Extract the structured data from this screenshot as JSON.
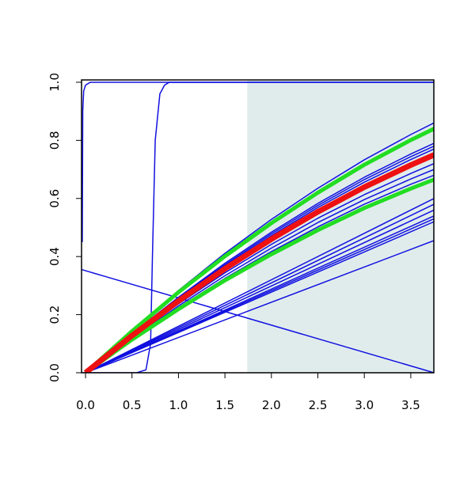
{
  "chart_data": {
    "type": "line",
    "xlim": [
      -0.043,
      3.748
    ],
    "ylim": [
      0,
      1.008
    ],
    "xticks": [
      {
        "value": 0,
        "label": "0.0"
      },
      {
        "value": 0.5,
        "label": "0.5"
      },
      {
        "value": 1,
        "label": "1.0"
      },
      {
        "value": 1.5,
        "label": "1.5"
      },
      {
        "value": 2,
        "label": "2.0"
      },
      {
        "value": 2.5,
        "label": "2.5"
      },
      {
        "value": 3,
        "label": "3.0"
      },
      {
        "value": 3.5,
        "label": "3.5"
      }
    ],
    "yticks": [
      {
        "value": 0,
        "label": "0.0"
      },
      {
        "value": 0.2,
        "label": "0.2"
      },
      {
        "value": 0.4,
        "label": "0.4"
      },
      {
        "value": 0.6,
        "label": "0.6"
      },
      {
        "value": 0.8,
        "label": "0.8"
      },
      {
        "value": 1,
        "label": "1.0"
      }
    ],
    "shade_from": 1.74,
    "shade_color": "#e0ecec",
    "series": [
      {
        "color": "#1010e0",
        "width": 1.5,
        "x": [
          -0.035,
          -0.03,
          -0.02,
          0,
          0.05,
          3.75
        ],
        "values": [
          0.45,
          0.9,
          0.97,
          0.99,
          1.0,
          1.0
        ]
      },
      {
        "color": "#1010e0",
        "width": 1.5,
        "x": [
          -0.04,
          0.55,
          0.65,
          0.7,
          0.72,
          0.75,
          0.8,
          0.85,
          0.9,
          3.75
        ],
        "values": [
          0,
          0,
          0.01,
          0.1,
          0.4,
          0.8,
          0.96,
          0.99,
          1,
          1
        ]
      },
      {
        "color": "#1010e0",
        "width": 1.5,
        "x": [
          -0.04,
          3.75
        ],
        "values": [
          0.355,
          0
        ]
      },
      {
        "color": "#1010e0",
        "width": 1.5,
        "x": [
          0,
          3.75
        ],
        "values": [
          0,
          0.6
        ]
      },
      {
        "color": "#1010e0",
        "width": 1.5,
        "x": [
          0,
          3.75
        ],
        "values": [
          0,
          0.58
        ]
      },
      {
        "color": "#1010e0",
        "width": 1.5,
        "x": [
          0,
          3.75
        ],
        "values": [
          0,
          0.56
        ]
      },
      {
        "color": "#1010e0",
        "width": 1.5,
        "x": [
          0,
          3.75
        ],
        "values": [
          0,
          0.54
        ]
      },
      {
        "color": "#1010e0",
        "width": 1.5,
        "x": [
          0,
          3.75
        ],
        "values": [
          0,
          0.53
        ]
      },
      {
        "color": "#1010e0",
        "width": 1.5,
        "x": [
          0,
          3.75
        ],
        "values": [
          0,
          0.52
        ]
      },
      {
        "color": "#1010e0",
        "width": 1.5,
        "x": [
          0,
          3.75
        ],
        "values": [
          0,
          0.455
        ]
      },
      {
        "color": "#1010e0",
        "width": 1.5,
        "x": [
          0,
          0.5,
          1,
          1.5,
          2,
          2.5,
          3,
          3.5,
          3.75
        ],
        "values": [
          0,
          0.147,
          0.283,
          0.411,
          0.528,
          0.635,
          0.733,
          0.82,
          0.86
        ]
      },
      {
        "color": "#1010e0",
        "width": 1.5,
        "x": [
          0,
          0.5,
          1,
          1.5,
          2,
          2.5,
          3,
          3.5,
          3.75
        ],
        "values": [
          0,
          0.135,
          0.26,
          0.377,
          0.484,
          0.583,
          0.673,
          0.753,
          0.79
        ]
      },
      {
        "color": "#1010e0",
        "width": 1.5,
        "x": [
          0,
          0.5,
          1,
          1.5,
          2,
          2.5,
          3,
          3.5,
          3.75
        ],
        "values": [
          0,
          0.133,
          0.257,
          0.372,
          0.478,
          0.576,
          0.665,
          0.744,
          0.78
        ]
      },
      {
        "color": "#1010e0",
        "width": 1.5,
        "x": [
          0,
          0.5,
          1,
          1.5,
          2,
          2.5,
          3,
          3.5,
          3.75
        ],
        "values": [
          0,
          0.131,
          0.254,
          0.368,
          0.472,
          0.569,
          0.656,
          0.734,
          0.77
        ]
      },
      {
        "color": "#1010e0",
        "width": 1.5,
        "x": [
          0,
          0.5,
          1,
          1.5,
          2,
          2.5,
          3,
          3.5,
          3.75
        ],
        "values": [
          0,
          0.123,
          0.237,
          0.344,
          0.442,
          0.532,
          0.613,
          0.686,
          0.72
        ]
      },
      {
        "color": "#1010e0",
        "width": 1.5,
        "x": [
          0,
          0.5,
          1,
          1.5,
          2,
          2.5,
          3,
          3.5,
          3.75
        ],
        "values": [
          0,
          0.119,
          0.23,
          0.334,
          0.429,
          0.517,
          0.596,
          0.667,
          0.7
        ]
      },
      {
        "color": "#1010e0",
        "width": 1.5,
        "x": [
          0,
          0.5,
          1,
          1.5,
          2,
          2.5,
          3,
          3.5,
          3.75
        ],
        "values": [
          0,
          0.116,
          0.224,
          0.325,
          0.417,
          0.502,
          0.58,
          0.649,
          0.68
        ]
      },
      {
        "color": "#22dd22",
        "width": 5,
        "x": [
          0,
          0.5,
          1,
          1.5,
          2,
          2.5,
          3,
          3.5,
          3.75
        ],
        "values": [
          0,
          0.143,
          0.277,
          0.401,
          0.515,
          0.62,
          0.716,
          0.801,
          0.84
        ]
      },
      {
        "color": "#22dd22",
        "width": 5,
        "x": [
          0,
          0.5,
          1,
          1.5,
          2,
          2.5,
          3,
          3.5,
          3.75
        ],
        "values": [
          0,
          0.114,
          0.219,
          0.318,
          0.408,
          0.491,
          0.567,
          0.634,
          0.665
        ]
      },
      {
        "color": "#ee1111",
        "width": 7,
        "x": [
          0,
          0.5,
          1,
          1.5,
          2,
          2.5,
          3,
          3.5,
          3.75
        ],
        "values": [
          0,
          0.128,
          0.247,
          0.358,
          0.46,
          0.554,
          0.639,
          0.715,
          0.75
        ]
      }
    ]
  }
}
